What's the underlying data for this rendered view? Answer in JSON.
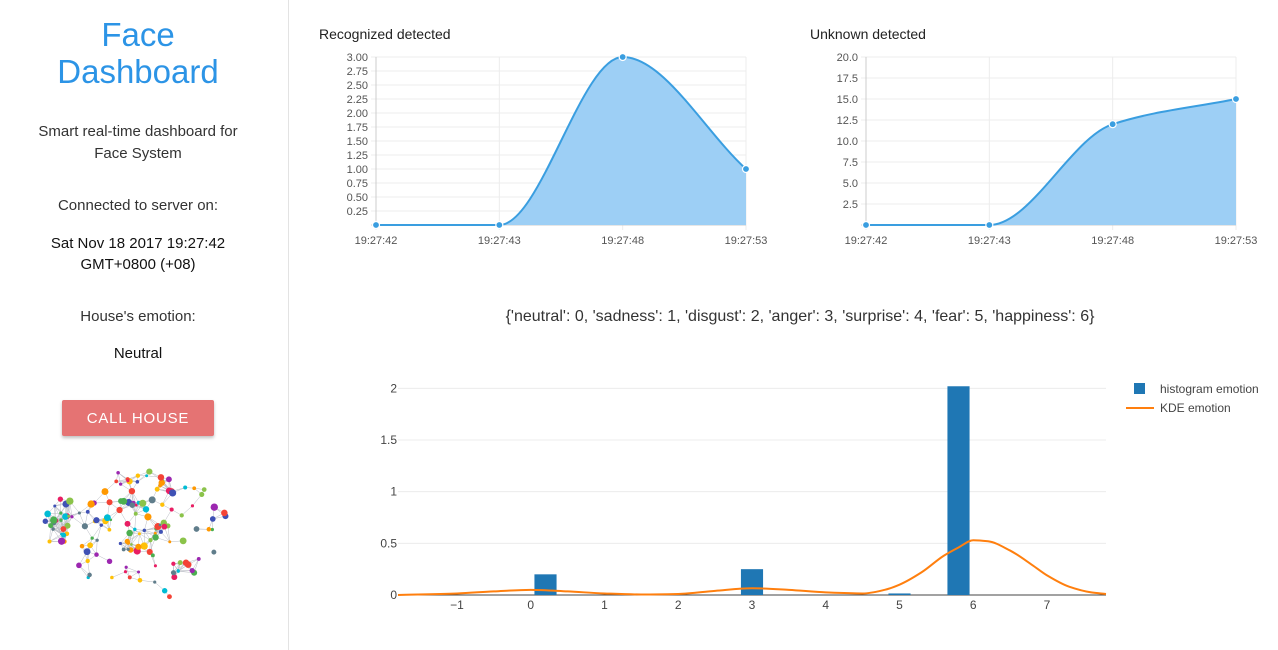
{
  "sidebar": {
    "title_line1": "Face",
    "title_line2": "Dashboard",
    "subtitle_line1": "Smart real-time dashboard for",
    "subtitle_line2": "Face System",
    "connected_label": "Connected to server on:",
    "connected_time_line1": "Sat Nov 18 2017 19:27:42",
    "connected_time_line2": "GMT+0800 (+08)",
    "emotion_label": "House's emotion:",
    "emotion_value": "Neutral",
    "call_button": "CALL HOUSE",
    "logo_icon": "brain-network-icon"
  },
  "emotion_mapping": "{'neutral': 0, 'sadness': 1, 'disgust': 2, 'anger': 3, 'surprise': 4, 'fear': 5, 'happiness': 6}",
  "colors": {
    "accent": "#2c94e6",
    "area_line": "#3a9ee0",
    "area_fill": "#9dcff5",
    "button": "#e57373",
    "histogram": "#1f77b4",
    "kde": "#ff7f0e"
  },
  "chart_data": [
    {
      "type": "area",
      "title": "Recognized detected",
      "x": [
        "19:27:42",
        "19:27:43",
        "19:27:48",
        "19:27:53"
      ],
      "y": [
        0,
        0,
        3,
        1
      ],
      "ylim": [
        0,
        3
      ],
      "yticks": [
        "3.00",
        "2.75",
        "2.50",
        "2.25",
        "2.00",
        "1.75",
        "1.50",
        "1.25",
        "1.00",
        "0.75",
        "0.50",
        "0.25"
      ],
      "grid": true
    },
    {
      "type": "area",
      "title": "Unknown detected",
      "x": [
        "19:27:42",
        "19:27:43",
        "19:27:48",
        "19:27:53"
      ],
      "y": [
        0,
        0,
        12,
        15
      ],
      "ylim": [
        0,
        20
      ],
      "yticks": [
        "20.0",
        "17.5",
        "15.0",
        "12.5",
        "10.0",
        "7.5",
        "5.0",
        "2.5"
      ],
      "grid": true
    },
    {
      "type": "bar",
      "xlim": [
        -1.8,
        7.8
      ],
      "ylim": [
        0,
        2.1
      ],
      "xticks": [
        "−1",
        "0",
        "1",
        "2",
        "3",
        "4",
        "5",
        "6",
        "7"
      ],
      "yticks": [
        "0",
        "0.5",
        "1",
        "1.5",
        "2"
      ],
      "legend_position": "top-right",
      "series": [
        {
          "name": "histogram emotion",
          "type": "bar",
          "bars": [
            {
              "x": 0.2,
              "y": 0.2
            },
            {
              "x": 3.0,
              "y": 0.25
            },
            {
              "x": 5.0,
              "y": 0.015
            },
            {
              "x": 5.8,
              "y": 2.02
            }
          ]
        },
        {
          "name": "KDE emotion",
          "type": "line",
          "x": [
            -1.8,
            -1.0,
            -0.5,
            0,
            0.5,
            1.0,
            1.5,
            2.0,
            2.5,
            3.0,
            3.5,
            4.0,
            4.5,
            4.8,
            5.0,
            5.3,
            5.6,
            5.8,
            6.0,
            6.2,
            6.5,
            6.8,
            7.0,
            7.3,
            7.6,
            7.8
          ],
          "y": [
            0.0,
            0.015,
            0.035,
            0.05,
            0.035,
            0.015,
            0.005,
            0.01,
            0.04,
            0.065,
            0.05,
            0.025,
            0.015,
            0.05,
            0.1,
            0.22,
            0.38,
            0.46,
            0.53,
            0.52,
            0.43,
            0.29,
            0.19,
            0.08,
            0.025,
            0.01
          ]
        }
      ]
    }
  ]
}
